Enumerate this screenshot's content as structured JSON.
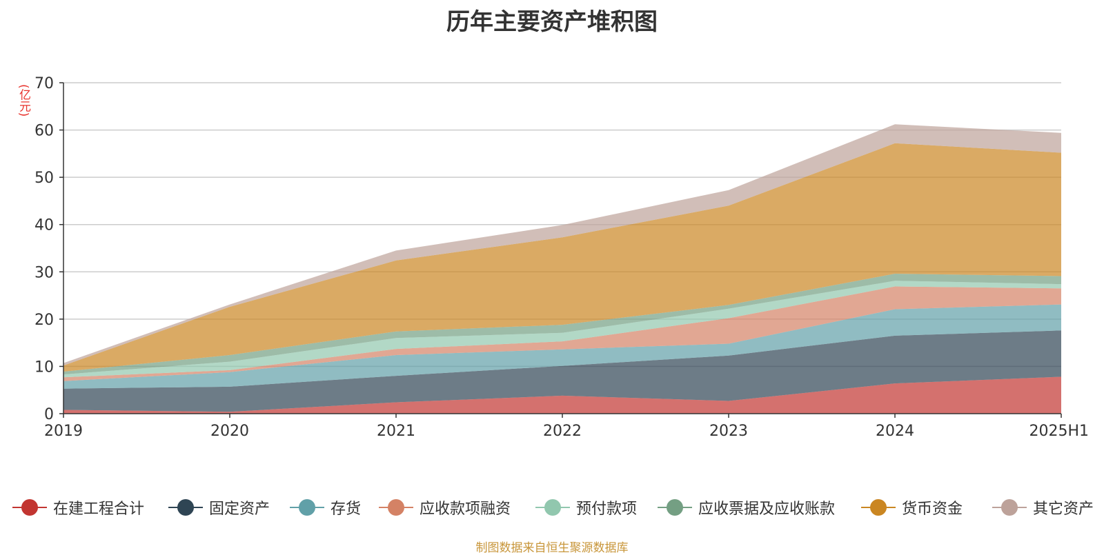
{
  "chart_data": {
    "type": "area",
    "stacked": true,
    "title": "历年主要资产堆积图",
    "ylabel": "(亿元)",
    "categories": [
      "2019",
      "2020",
      "2021",
      "2022",
      "2023",
      "2024",
      "2025H1"
    ],
    "ylim": [
      0,
      70
    ],
    "yticks": [
      0,
      10,
      20,
      30,
      40,
      50,
      60,
      70
    ],
    "grid": true,
    "legend_position": "bottom",
    "series": [
      {
        "name": "在建工程合计",
        "color": "#c23531",
        "values": [
          0.8,
          0.4,
          2.4,
          3.8,
          2.7,
          6.4,
          7.8
        ]
      },
      {
        "name": "固定资产",
        "color": "#2f4554",
        "values": [
          4.5,
          5.3,
          5.6,
          6.3,
          9.6,
          10.1,
          9.8
        ]
      },
      {
        "name": "存货",
        "color": "#61a0a8",
        "values": [
          1.6,
          3.1,
          4.4,
          3.5,
          2.5,
          5.6,
          5.5
        ]
      },
      {
        "name": "应收款项融资",
        "color": "#d48265",
        "values": [
          0.8,
          0.4,
          1.3,
          1.7,
          5.4,
          4.8,
          3.4
        ]
      },
      {
        "name": "预付款项",
        "color": "#91c7ae",
        "values": [
          0.6,
          1.8,
          2.3,
          1.8,
          2.0,
          1.2,
          0.9
        ]
      },
      {
        "name": "应收票据及应收账款",
        "color": "#749f83",
        "values": [
          0.6,
          1.4,
          1.4,
          1.7,
          0.8,
          1.5,
          1.7
        ]
      },
      {
        "name": "货币资金",
        "color": "#ca8622",
        "values": [
          1.3,
          10.2,
          15.0,
          18.5,
          21.0,
          27.6,
          26.1
        ]
      },
      {
        "name": "其它资产",
        "color": "#bda29a",
        "values": [
          0.5,
          0.5,
          2.1,
          2.6,
          3.3,
          4.0,
          4.2
        ]
      }
    ],
    "source_note": "制图数据来自恒生聚源数据库"
  }
}
